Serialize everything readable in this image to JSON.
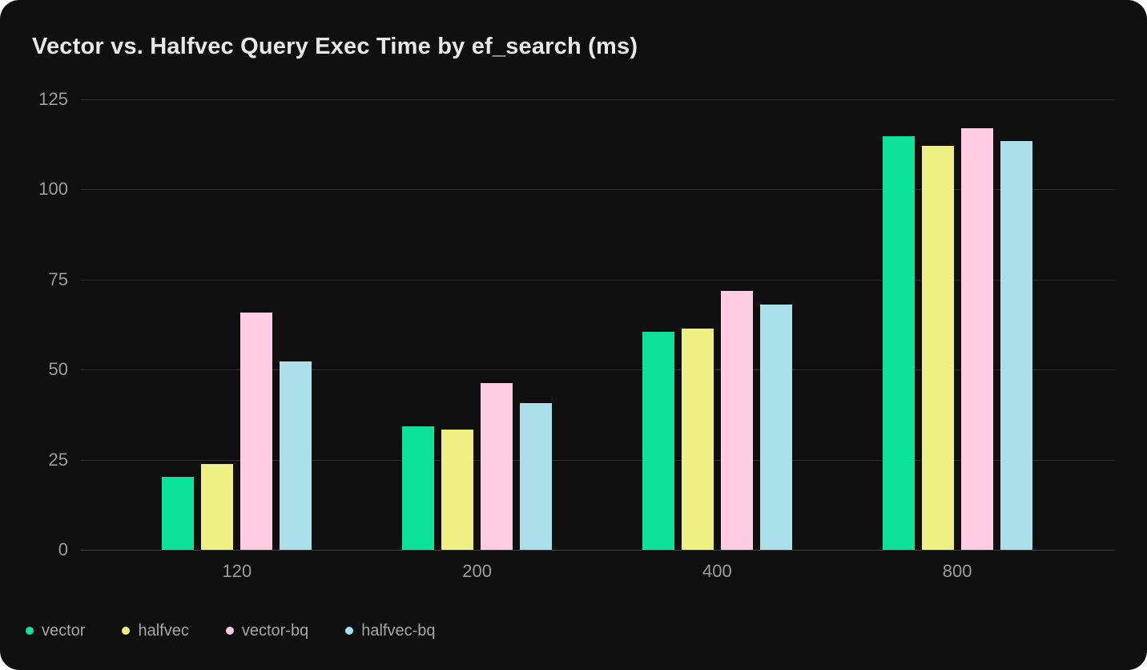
{
  "colors": {
    "page_background": "#ffffff",
    "card_background": "#0f0f0f",
    "grid_line": "#2b2b2b",
    "zero_line": "#3e3e3e",
    "title_text": "#e8e8e8",
    "tick_text": "#9c9c9c",
    "legend_text": "#a6a6a6"
  },
  "chart_data": {
    "type": "bar",
    "title": "Vector vs. Halfvec Query Exec Time by ef_search (ms)",
    "xlabel": "",
    "ylabel": "",
    "ylim": [
      0,
      125
    ],
    "yticks": [
      0,
      25,
      50,
      75,
      100,
      125
    ],
    "grid": true,
    "legend_position": "bottom",
    "categories": [
      "120",
      "200",
      "400",
      "800"
    ],
    "series": [
      {
        "name": "vector",
        "color": "#0ce29a",
        "values": [
          20.3,
          34.3,
          60.5,
          114.8
        ]
      },
      {
        "name": "halfvec",
        "color": "#eef083",
        "values": [
          23.7,
          33.4,
          61.5,
          112.2
        ]
      },
      {
        "name": "vector-bq",
        "color": "#ffcce2",
        "values": [
          65.8,
          46.3,
          71.8,
          117
        ]
      },
      {
        "name": "halfvec-bq",
        "color": "#abdfe9",
        "values": [
          52.3,
          40.6,
          68,
          113.5
        ]
      }
    ]
  }
}
